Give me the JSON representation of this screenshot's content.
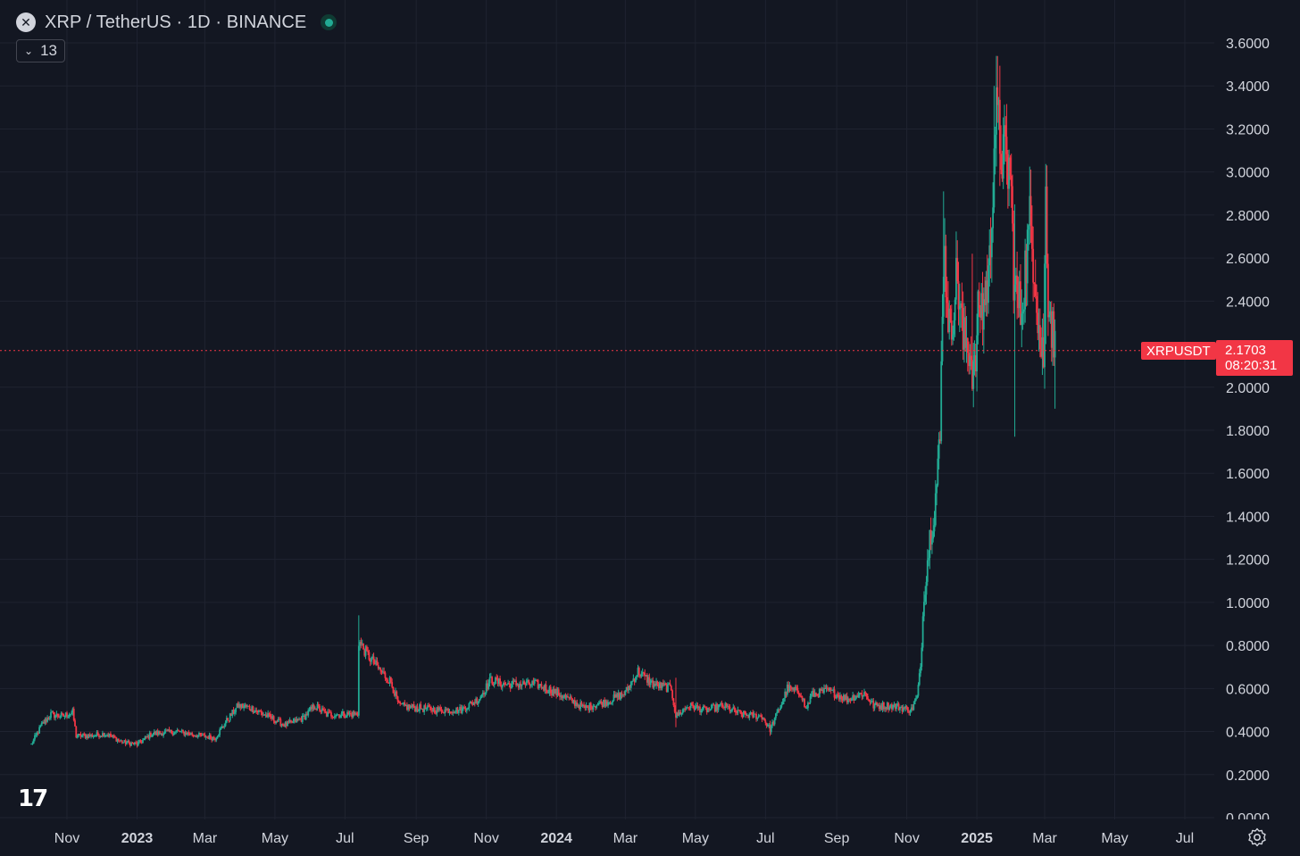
{
  "header": {
    "title": "XRP / TetherUS · 1D · BINANCE",
    "indicator_count": "13"
  },
  "price_tag": {
    "symbol": "XRPUSDT",
    "price": "2.1703",
    "countdown": "08:20:31"
  },
  "colors": {
    "background": "#131722",
    "grid": "#1f2330",
    "up": "#22ab94",
    "down": "#f23645",
    "text": "#d1d4dc"
  },
  "chart_data": {
    "type": "candlestick",
    "yaxis": {
      "ticks": [
        "3.6000",
        "3.4000",
        "3.2000",
        "3.0000",
        "2.8000",
        "2.6000",
        "2.4000",
        "2.0000",
        "1.8000",
        "1.6000",
        "1.4000",
        "1.2000",
        "1.0000",
        "0.8000",
        "0.6000",
        "0.4000",
        "0.2000",
        "0.0000"
      ],
      "range": [
        0,
        3.6
      ]
    },
    "xaxis": {
      "ticks": [
        {
          "label": "Nov",
          "date": "2022-11-01",
          "bold": false
        },
        {
          "label": "2023",
          "date": "2023-01-01",
          "bold": true
        },
        {
          "label": "Mar",
          "date": "2023-03-01",
          "bold": false
        },
        {
          "label": "May",
          "date": "2023-05-01",
          "bold": false
        },
        {
          "label": "Jul",
          "date": "2023-07-01",
          "bold": false
        },
        {
          "label": "Sep",
          "date": "2023-09-01",
          "bold": false
        },
        {
          "label": "Nov",
          "date": "2023-11-01",
          "bold": false
        },
        {
          "label": "2024",
          "date": "2024-01-01",
          "bold": true
        },
        {
          "label": "Mar",
          "date": "2024-03-01",
          "bold": false
        },
        {
          "label": "May",
          "date": "2024-05-01",
          "bold": false
        },
        {
          "label": "Jul",
          "date": "2024-07-01",
          "bold": false
        },
        {
          "label": "Sep",
          "date": "2024-09-01",
          "bold": false
        },
        {
          "label": "Nov",
          "date": "2024-11-01",
          "bold": false
        },
        {
          "label": "2025",
          "date": "2025-01-01",
          "bold": true
        },
        {
          "label": "Mar",
          "date": "2025-03-01",
          "bold": false
        },
        {
          "label": "May",
          "date": "2025-05-01",
          "bold": false
        },
        {
          "label": "Jul",
          "date": "2025-07-01",
          "bold": false
        }
      ]
    },
    "last_price": 2.1703,
    "series": [
      {
        "close_path": [
          [
            "2022-10-01",
            0.34
          ],
          [
            "2022-10-10",
            0.43
          ],
          [
            "2022-10-18",
            0.48
          ],
          [
            "2022-10-28",
            0.47
          ],
          [
            "2022-11-06",
            0.49
          ],
          [
            "2022-11-09",
            0.38
          ],
          [
            "2022-11-20",
            0.38
          ],
          [
            "2022-12-05",
            0.39
          ],
          [
            "2022-12-20",
            0.35
          ],
          [
            "2023-01-01",
            0.34
          ],
          [
            "2023-01-14",
            0.39
          ],
          [
            "2023-02-05",
            0.4
          ],
          [
            "2023-02-25",
            0.38
          ],
          [
            "2023-03-10",
            0.37
          ],
          [
            "2023-03-20",
            0.45
          ],
          [
            "2023-03-30",
            0.52
          ],
          [
            "2023-04-10",
            0.51
          ],
          [
            "2023-04-25",
            0.47
          ],
          [
            "2023-05-10",
            0.43
          ],
          [
            "2023-05-25",
            0.46
          ],
          [
            "2023-06-05",
            0.52
          ],
          [
            "2023-06-15",
            0.48
          ],
          [
            "2023-06-30",
            0.48
          ],
          [
            "2023-07-12",
            0.48
          ],
          [
            "2023-07-13",
            0.82
          ],
          [
            "2023-07-20",
            0.76
          ],
          [
            "2023-08-01",
            0.68
          ],
          [
            "2023-08-10",
            0.63
          ],
          [
            "2023-08-17",
            0.52
          ],
          [
            "2023-09-01",
            0.51
          ],
          [
            "2023-09-20",
            0.5
          ],
          [
            "2023-10-10",
            0.5
          ],
          [
            "2023-10-25",
            0.55
          ],
          [
            "2023-11-05",
            0.64
          ],
          [
            "2023-11-15",
            0.62
          ],
          [
            "2023-12-01",
            0.62
          ],
          [
            "2023-12-15",
            0.62
          ],
          [
            "2024-01-05",
            0.57
          ],
          [
            "2024-01-25",
            0.51
          ],
          [
            "2024-02-15",
            0.54
          ],
          [
            "2024-03-01",
            0.58
          ],
          [
            "2024-03-12",
            0.68
          ],
          [
            "2024-03-25",
            0.62
          ],
          [
            "2024-04-10",
            0.6
          ],
          [
            "2024-04-14",
            0.47
          ],
          [
            "2024-04-25",
            0.52
          ],
          [
            "2024-05-10",
            0.5
          ],
          [
            "2024-05-25",
            0.52
          ],
          [
            "2024-06-10",
            0.48
          ],
          [
            "2024-06-28",
            0.47
          ],
          [
            "2024-07-05",
            0.41
          ],
          [
            "2024-07-15",
            0.53
          ],
          [
            "2024-07-20",
            0.6
          ],
          [
            "2024-08-01",
            0.58
          ],
          [
            "2024-08-05",
            0.5
          ],
          [
            "2024-08-10",
            0.57
          ],
          [
            "2024-08-25",
            0.59
          ],
          [
            "2024-09-10",
            0.55
          ],
          [
            "2024-09-25",
            0.58
          ],
          [
            "2024-10-03",
            0.52
          ],
          [
            "2024-10-20",
            0.52
          ],
          [
            "2024-11-05",
            0.5
          ],
          [
            "2024-11-10",
            0.56
          ],
          [
            "2024-11-13",
            0.7
          ],
          [
            "2024-11-16",
            1.05
          ],
          [
            "2024-11-22",
            1.35
          ],
          [
            "2024-11-25",
            1.43
          ],
          [
            "2024-11-30",
            1.75
          ],
          [
            "2024-12-02",
            2.4
          ],
          [
            "2024-12-03",
            2.65
          ],
          [
            "2024-12-06",
            2.45
          ],
          [
            "2024-12-09",
            2.2
          ],
          [
            "2024-12-12",
            2.45
          ],
          [
            "2024-12-15",
            2.5
          ],
          [
            "2024-12-18",
            2.35
          ],
          [
            "2024-12-20",
            2.2
          ],
          [
            "2024-12-24",
            2.22
          ],
          [
            "2024-12-30",
            2.05
          ],
          [
            "2025-01-03",
            2.4
          ],
          [
            "2025-01-06",
            2.35
          ],
          [
            "2025-01-12",
            2.55
          ],
          [
            "2025-01-15",
            3.0
          ],
          [
            "2025-01-17",
            3.25
          ],
          [
            "2025-01-21",
            3.15
          ],
          [
            "2025-01-25",
            3.05
          ],
          [
            "2025-01-30",
            3.0
          ],
          [
            "2025-02-02",
            2.55
          ],
          [
            "2025-02-03",
            2.45
          ],
          [
            "2025-02-08",
            2.35
          ],
          [
            "2025-02-12",
            2.55
          ],
          [
            "2025-02-16",
            2.75
          ],
          [
            "2025-02-20",
            2.6
          ],
          [
            "2025-02-25",
            2.2
          ],
          [
            "2025-02-28",
            2.15
          ],
          [
            "2025-03-02",
            2.9
          ],
          [
            "2025-03-04",
            2.45
          ],
          [
            "2025-03-06",
            2.35
          ],
          [
            "2025-03-08",
            2.25
          ],
          [
            "2025-03-10",
            2.17
          ]
        ],
        "spikes": [
          {
            "date": "2024-12-03",
            "high": 2.91,
            "low": 2.3
          },
          {
            "date": "2024-12-28",
            "high": 2.62,
            "low": 2.0
          },
          {
            "date": "2025-01-16",
            "high": 3.4,
            "low": 2.9
          },
          {
            "date": "2025-02-03",
            "high": 2.85,
            "low": 1.77
          },
          {
            "date": "2025-03-02",
            "high": 3.0,
            "low": 2.2
          },
          {
            "date": "2025-03-10",
            "high": 2.3,
            "low": 1.9
          },
          {
            "date": "2023-07-13",
            "high": 0.94,
            "low": 0.47
          },
          {
            "date": "2024-04-14",
            "high": 0.65,
            "low": 0.42
          },
          {
            "date": "2024-07-05",
            "high": 0.45,
            "low": 0.38
          }
        ]
      }
    ]
  }
}
